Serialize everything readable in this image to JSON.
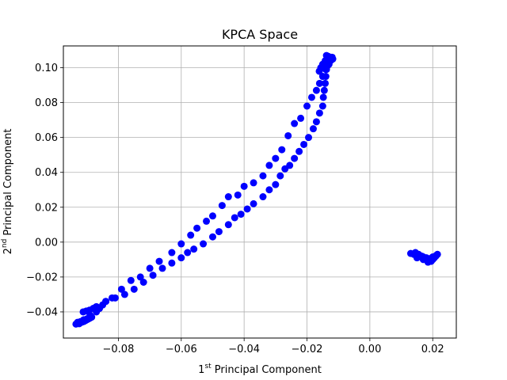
{
  "chart_data": {
    "type": "scatter",
    "title": "KPCA Space",
    "xlabel": {
      "prefix": "1",
      "sup": "st",
      "text": " Principal Component"
    },
    "ylabel": {
      "prefix": "2",
      "sup": "nd",
      "text": " Principal Component"
    },
    "xlim": [
      -0.0975,
      0.0275
    ],
    "ylim": [
      -0.055,
      0.1125
    ],
    "xticks": [
      -0.08,
      -0.06,
      -0.04,
      -0.02,
      0.0,
      0.02
    ],
    "xtick_labels": [
      "−0.08",
      "−0.06",
      "−0.04",
      "−0.02",
      "0.00",
      "0.02"
    ],
    "yticks": [
      -0.04,
      -0.02,
      0.0,
      0.02,
      0.04,
      0.06,
      0.08,
      0.1
    ],
    "ytick_labels": [
      "−0.04",
      "−0.02",
      "0.00",
      "0.02",
      "0.04",
      "0.06",
      "0.08",
      "0.10"
    ],
    "grid": true,
    "marker_color": "#0000ff",
    "series": [
      {
        "x": [
          -0.0935,
          -0.093,
          -0.0925,
          -0.092,
          -0.0915,
          -0.091,
          -0.0905,
          -0.09,
          -0.0895,
          -0.089,
          -0.0885,
          -0.093,
          -0.092,
          -0.091,
          -0.09,
          -0.089,
          -0.0912,
          -0.0902,
          -0.0892,
          -0.088,
          -0.087,
          -0.085,
          -0.084,
          -0.082,
          -0.079,
          -0.076,
          -0.073,
          -0.07,
          -0.067,
          -0.063,
          -0.06,
          -0.057,
          -0.055,
          -0.052,
          -0.05,
          -0.047,
          -0.045,
          -0.042,
          -0.04,
          -0.037,
          -0.034,
          -0.032,
          -0.03,
          -0.028,
          -0.026,
          -0.024,
          -0.022,
          -0.02,
          -0.0185,
          -0.017,
          -0.016,
          -0.015,
          -0.014,
          -0.013,
          -0.0125,
          -0.012,
          -0.087,
          -0.086,
          -0.084,
          -0.081,
          -0.078,
          -0.075,
          -0.072,
          -0.069,
          -0.066,
          -0.063,
          -0.06,
          -0.058,
          -0.056,
          -0.053,
          -0.05,
          -0.048,
          -0.045,
          -0.043,
          -0.041,
          -0.039,
          -0.037,
          -0.034,
          -0.032,
          -0.03,
          -0.0285,
          -0.027,
          -0.0255,
          -0.024,
          -0.0225,
          -0.021,
          -0.0195,
          -0.018,
          -0.017,
          -0.016,
          -0.015,
          -0.0148,
          -0.0145,
          -0.0142,
          -0.014,
          -0.0138,
          -0.0135,
          -0.0132,
          -0.013,
          -0.0128,
          -0.0138,
          -0.0132,
          -0.0126,
          -0.0124,
          -0.0122,
          -0.0118,
          -0.0142,
          -0.015,
          -0.0156,
          -0.0161,
          0.013,
          0.014,
          0.015,
          0.016,
          0.017,
          0.018,
          0.019,
          0.02,
          0.021,
          0.0215,
          0.0145,
          0.0155,
          0.0165,
          0.0175,
          0.0185,
          0.0195,
          0.0205,
          0.0212,
          0.015,
          0.017,
          0.019,
          0.02,
          0.016,
          0.018,
          0.0195,
          0.0185
        ],
        "y": [
          -0.047,
          -0.0465,
          -0.0468,
          -0.0462,
          -0.0458,
          -0.0455,
          -0.045,
          -0.0445,
          -0.044,
          -0.0435,
          -0.043,
          -0.046,
          -0.0455,
          -0.0445,
          -0.044,
          -0.042,
          -0.04,
          -0.0395,
          -0.039,
          -0.038,
          -0.037,
          -0.036,
          -0.034,
          -0.032,
          -0.027,
          -0.022,
          -0.02,
          -0.015,
          -0.011,
          -0.006,
          -0.001,
          0.004,
          0.008,
          0.012,
          0.015,
          0.021,
          0.026,
          0.027,
          0.032,
          0.034,
          0.038,
          0.044,
          0.048,
          0.053,
          0.061,
          0.068,
          0.071,
          0.078,
          0.083,
          0.087,
          0.091,
          0.095,
          0.099,
          0.102,
          0.104,
          0.106,
          -0.04,
          -0.038,
          -0.034,
          -0.032,
          -0.03,
          -0.027,
          -0.023,
          -0.019,
          -0.015,
          -0.012,
          -0.009,
          -0.006,
          -0.004,
          -0.001,
          0.003,
          0.006,
          0.01,
          0.014,
          0.016,
          0.019,
          0.022,
          0.026,
          0.03,
          0.033,
          0.038,
          0.042,
          0.044,
          0.048,
          0.052,
          0.056,
          0.06,
          0.065,
          0.069,
          0.074,
          0.078,
          0.083,
          0.087,
          0.091,
          0.095,
          0.099,
          0.101,
          0.103,
          0.105,
          0.106,
          0.107,
          0.1065,
          0.1055,
          0.1045,
          0.106,
          0.105,
          0.104,
          0.102,
          0.1,
          0.098,
          -0.0065,
          -0.007,
          -0.0075,
          -0.008,
          -0.0085,
          -0.009,
          -0.0095,
          -0.01,
          -0.008,
          -0.007,
          -0.006,
          -0.007,
          -0.008,
          -0.009,
          -0.01,
          -0.011,
          -0.009,
          -0.0075,
          -0.009,
          -0.01,
          -0.011,
          -0.0085,
          -0.008,
          -0.0095,
          -0.0105,
          -0.0115
        ]
      }
    ]
  }
}
